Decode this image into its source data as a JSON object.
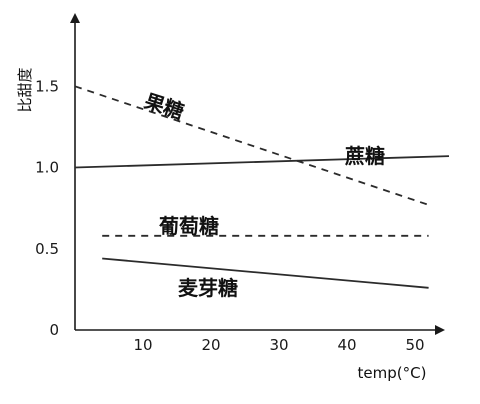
{
  "chart_data": {
    "type": "line",
    "xlabel": "temp(°C)",
    "ylabel": "比甜度",
    "xlim": [
      0,
      55
    ],
    "ylim": [
      0,
      2.0
    ],
    "x_ticks": [
      10,
      20,
      30,
      40,
      50
    ],
    "y_ticks": [
      0,
      0.5,
      1.0,
      1.5
    ],
    "x_tick_labels": [
      "10",
      "20",
      "30",
      "40",
      "50"
    ],
    "y_tick_labels": [
      "0",
      "0.5",
      "1.0",
      "1.5"
    ],
    "grid": false,
    "series": [
      {
        "name": "果糖",
        "style": "dashed",
        "points": [
          [
            0,
            1.5
          ],
          [
            52,
            0.77
          ]
        ]
      },
      {
        "name": "蔗糖",
        "style": "solid",
        "points": [
          [
            0,
            1.0
          ],
          [
            55,
            1.07
          ]
        ]
      },
      {
        "name": "葡萄糖",
        "style": "dashed",
        "points": [
          [
            4,
            0.58
          ],
          [
            52,
            0.58
          ]
        ]
      },
      {
        "name": "麦芽糖",
        "style": "solid",
        "points": [
          [
            4,
            0.44
          ],
          [
            52,
            0.26
          ]
        ]
      }
    ],
    "colors": {
      "axis": "#1a1a1a",
      "line": "#2b2b2b",
      "text": "#111111"
    }
  }
}
